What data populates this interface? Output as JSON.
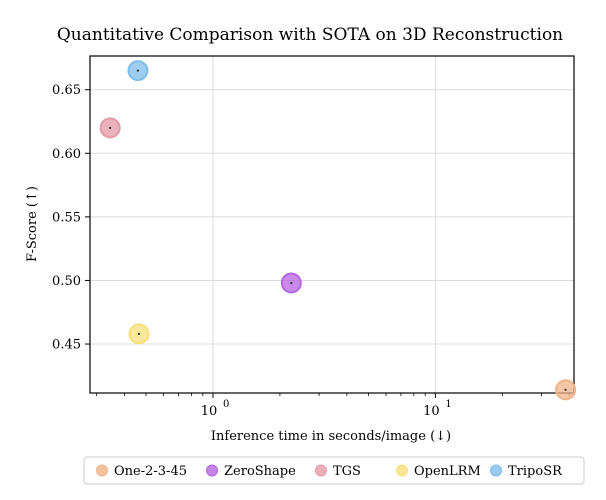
{
  "chart_data": {
    "type": "scatter",
    "title": "Quantitative Comparison with SOTA on 3D Reconstruction",
    "xlabel": "Inference time in seconds/image (↓)",
    "ylabel": "F-Score (↑)",
    "xscale": "log",
    "xlim": [
      0.28,
      42
    ],
    "ylim": [
      0.4115,
      0.6765
    ],
    "x_ticks": [
      {
        "value": 1,
        "label": "10",
        "exp": "0"
      },
      {
        "value": 10,
        "label": "10",
        "exp": "1"
      }
    ],
    "y_ticks": [
      {
        "value": 0.45,
        "label": "0.45"
      },
      {
        "value": 0.5,
        "label": "0.50"
      },
      {
        "value": 0.55,
        "label": "0.55"
      },
      {
        "value": 0.6,
        "label": "0.60"
      },
      {
        "value": 0.65,
        "label": "0.65"
      }
    ],
    "grid": true,
    "legend_position": "bottom",
    "series": [
      {
        "name": "One-2-3-45",
        "color": "#f0b48a",
        "points": [
          {
            "x": 38.5,
            "y": 0.414
          }
        ]
      },
      {
        "name": "ZeroShape",
        "color": "#b566e0",
        "points": [
          {
            "x": 2.25,
            "y": 0.498
          }
        ]
      },
      {
        "name": "TGS",
        "color": "#e39aa6",
        "points": [
          {
            "x": 0.345,
            "y": 0.62
          }
        ]
      },
      {
        "name": "OpenLRM",
        "color": "#f7e07a",
        "points": [
          {
            "x": 0.465,
            "y": 0.458
          }
        ]
      },
      {
        "name": "TripoSR",
        "color": "#7fbcea",
        "points": [
          {
            "x": 0.46,
            "y": 0.665
          }
        ]
      }
    ]
  }
}
